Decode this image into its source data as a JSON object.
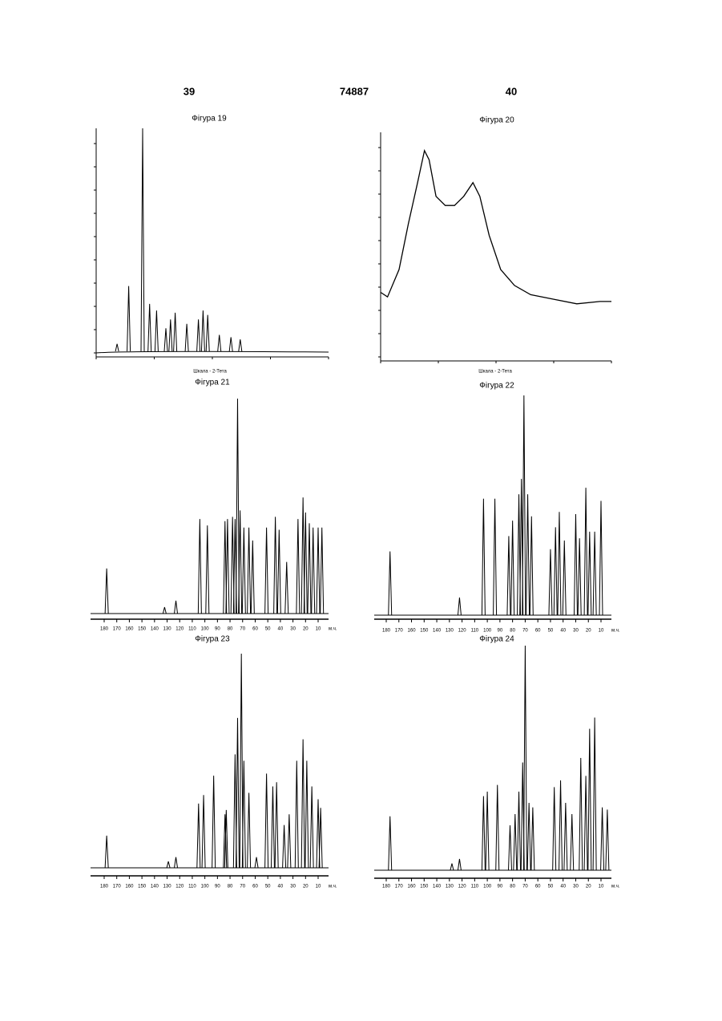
{
  "header": {
    "left": "39",
    "center": "74887",
    "right": "40"
  },
  "figures": [
    {
      "type": "xrd_peaks",
      "title": "Фігура 19",
      "x_label": "Шкала - 2-Тета",
      "x": [
        9,
        14,
        20,
        23,
        26,
        30,
        32,
        34,
        39,
        44,
        46,
        48,
        53,
        58,
        62
      ],
      "values": [
        3,
        29,
        100,
        21,
        18,
        10,
        14,
        17,
        12,
        14,
        18,
        16,
        7,
        6,
        5
      ]
    },
    {
      "type": "xrd_curve",
      "title": "Фігура 20",
      "x_label": "Шкала - 2-Тета",
      "x": [
        0,
        3,
        8,
        12,
        16,
        19,
        21,
        24,
        28,
        32,
        36,
        40,
        43,
        47,
        52,
        58,
        65,
        75,
        85,
        95,
        100
      ],
      "values": [
        30,
        28,
        40,
        60,
        78,
        92,
        88,
        72,
        68,
        68,
        72,
        78,
        72,
        55,
        40,
        33,
        29,
        27,
        25,
        26,
        26
      ]
    },
    {
      "type": "nmr",
      "title": "Фігура 21",
      "unit": "м.ч.",
      "xticks": [
        180,
        170,
        160,
        150,
        140,
        130,
        120,
        110,
        100,
        90,
        80,
        70,
        60,
        50,
        40,
        30,
        20,
        10
      ],
      "x": [
        178,
        132,
        123,
        104,
        98,
        84,
        82,
        78,
        76,
        74,
        72,
        69,
        65,
        62,
        51,
        44,
        41,
        35,
        26,
        22,
        20,
        17,
        14,
        10,
        7
      ],
      "values": [
        21,
        3,
        6,
        44,
        41,
        43,
        44,
        45,
        44,
        100,
        48,
        40,
        40,
        34,
        40,
        45,
        39,
        24,
        44,
        54,
        47,
        42,
        40,
        40,
        40
      ]
    },
    {
      "type": "nmr",
      "title": "Фігура 22",
      "unit": "м.ч.",
      "xticks": [
        180,
        170,
        160,
        150,
        140,
        130,
        120,
        110,
        100,
        90,
        80,
        70,
        60,
        50,
        40,
        30,
        20,
        10
      ],
      "x": [
        177,
        122,
        103,
        94,
        83,
        80,
        75,
        73,
        71,
        68,
        65,
        50,
        46,
        43,
        39,
        30,
        27,
        22,
        19,
        15,
        10
      ],
      "values": [
        29,
        8,
        53,
        53,
        36,
        43,
        55,
        62,
        100,
        55,
        45,
        30,
        40,
        47,
        34,
        46,
        35,
        58,
        38,
        38,
        52
      ]
    },
    {
      "type": "nmr",
      "title": "Фігура 23",
      "unit": "м.ч.",
      "xticks": [
        180,
        170,
        160,
        150,
        140,
        130,
        120,
        110,
        100,
        90,
        80,
        70,
        60,
        50,
        40,
        30,
        20,
        10
      ],
      "x": [
        178,
        129,
        123,
        105,
        101,
        93,
        84,
        83,
        76,
        74,
        71,
        69,
        65,
        59,
        51,
        46,
        43,
        37,
        33,
        27,
        22,
        19,
        15,
        10,
        8
      ],
      "values": [
        15,
        3,
        5,
        30,
        34,
        43,
        25,
        27,
        53,
        70,
        100,
        50,
        35,
        5,
        44,
        38,
        40,
        20,
        25,
        50,
        60,
        50,
        38,
        32,
        28
      ]
    },
    {
      "type": "nmr",
      "title": "Фігура 24",
      "unit": "м.ч.",
      "xticks": [
        180,
        170,
        160,
        150,
        140,
        130,
        120,
        110,
        100,
        90,
        80,
        70,
        60,
        50,
        40,
        30,
        20,
        10
      ],
      "x": [
        177,
        128,
        122,
        103,
        100,
        92,
        82,
        78,
        75,
        72,
        70,
        67,
        64,
        47,
        42,
        38,
        33,
        26,
        22,
        19,
        15,
        9,
        5
      ],
      "values": [
        24,
        3,
        5,
        33,
        35,
        38,
        20,
        25,
        35,
        48,
        100,
        30,
        28,
        37,
        40,
        30,
        25,
        50,
        42,
        63,
        68,
        28,
        27
      ]
    }
  ]
}
